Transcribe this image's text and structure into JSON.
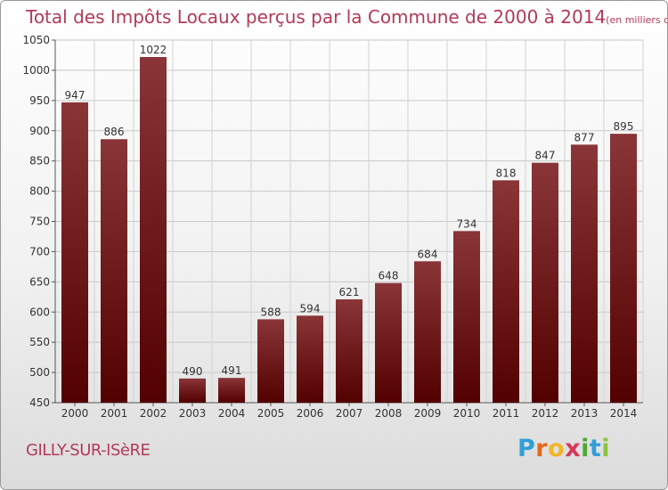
{
  "header": {
    "title": "Total des Impôts Locaux perçus par la Commune de 2000 à 2014",
    "unit": "(en milliers d'€)"
  },
  "footer": {
    "commune": "GILLY-SUR-ISèRE",
    "logo": {
      "p": "P",
      "r": "r",
      "o": "o",
      "x": "x",
      "i1": "i",
      "t": "t",
      "i2": "i"
    }
  },
  "colors": {
    "bar_top": "#8a3538",
    "bar_bottom": "#530000",
    "title": "#b33a57"
  },
  "chart_data": {
    "type": "bar",
    "title": "Total des Impôts Locaux perçus par la Commune de 2000 à 2014",
    "xlabel": "",
    "ylabel": "en milliers d'€",
    "categories": [
      "2000",
      "2001",
      "2002",
      "2003",
      "2004",
      "2005",
      "2006",
      "2007",
      "2008",
      "2009",
      "2010",
      "2011",
      "2012",
      "2013",
      "2014"
    ],
    "values": [
      947,
      886,
      1022,
      490,
      491,
      588,
      594,
      621,
      648,
      684,
      734,
      818,
      847,
      877,
      895
    ],
    "ylim": [
      450,
      1050
    ],
    "yticks": [
      450,
      500,
      550,
      600,
      650,
      700,
      750,
      800,
      850,
      900,
      950,
      1000,
      1050
    ],
    "grid": true
  }
}
